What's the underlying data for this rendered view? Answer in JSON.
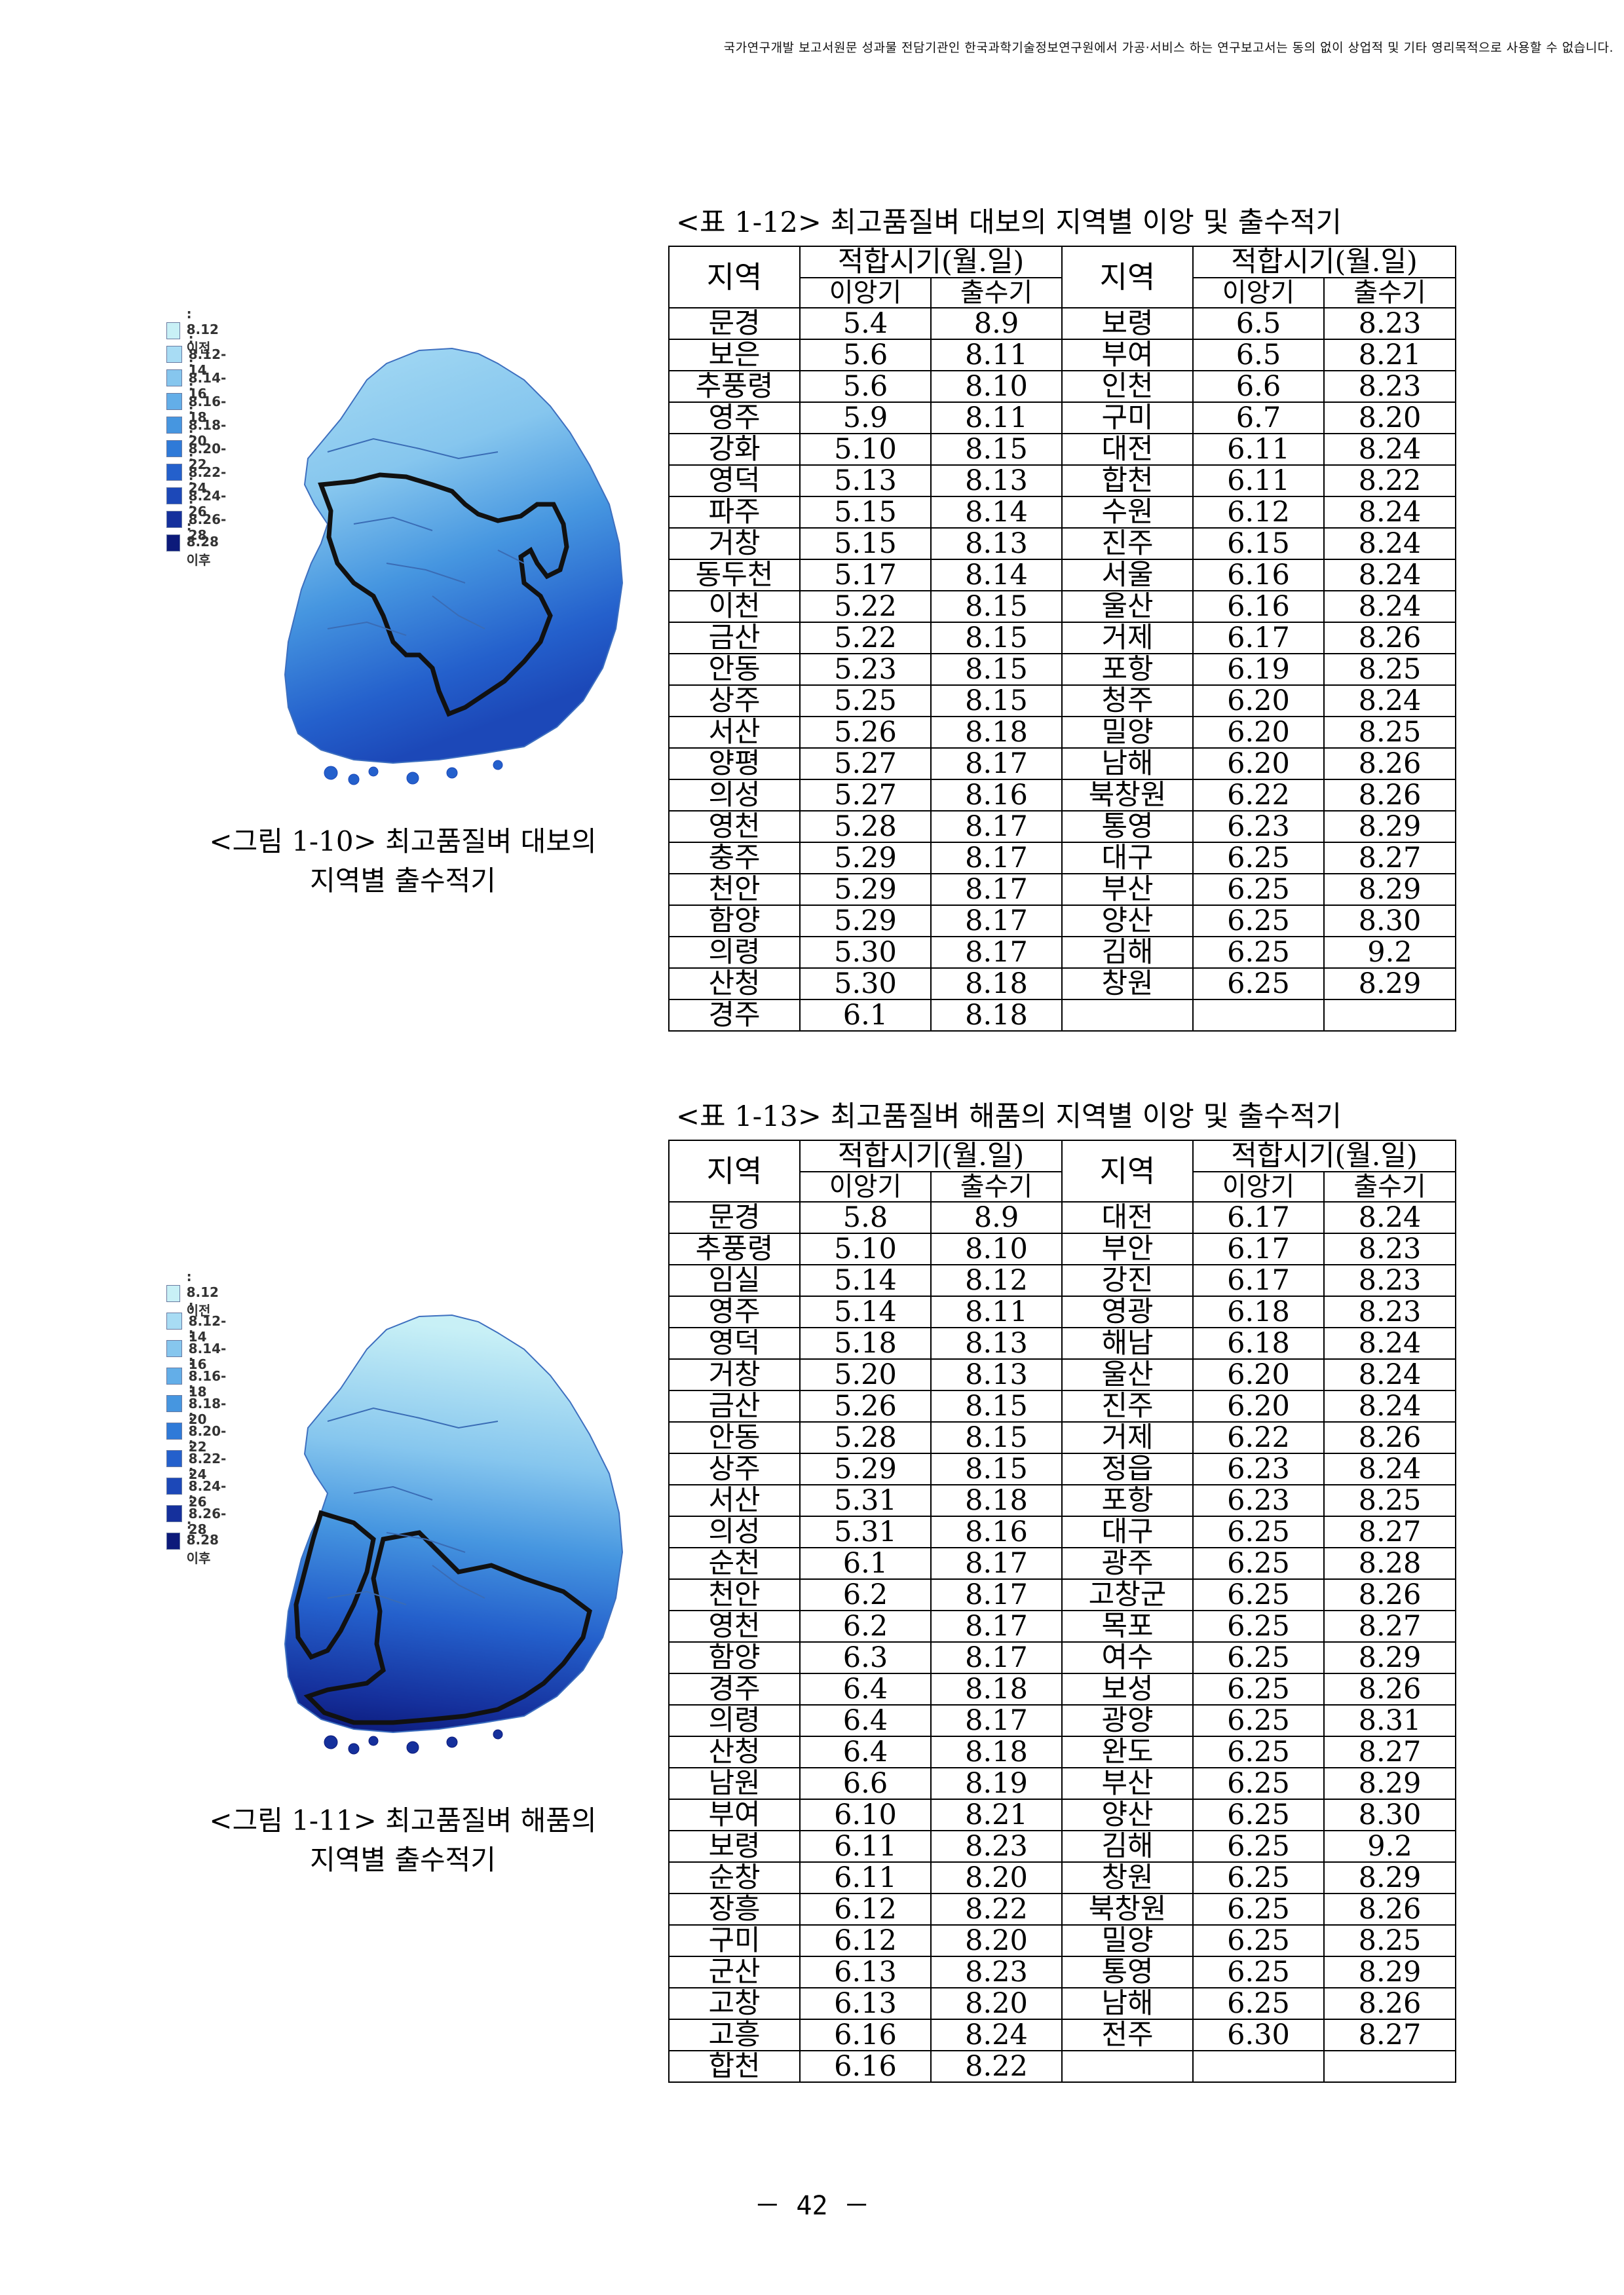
{
  "header_notice": "국가연구개발 보고서원문 성과물 전담기관인 한국과학기술정보연구원에서 가공·서비스 하는 연구보고서는 동의 없이 상업적 및 기타 영리목적으로 사용할 수 없습니다.",
  "figure1": {
    "caption_line1": "<그림 1-10> 최고품질벼 대보의",
    "caption_line2": "지역별 출수적기",
    "legend": [
      {
        "label": ": 8.12 이전",
        "color": "#c8f0f6"
      },
      {
        "label": ": 8.12-14",
        "color": "#a8dcf4"
      },
      {
        "label": ": 8.14-16",
        "color": "#86c6ee"
      },
      {
        "label": ": 8.16-18",
        "color": "#63aee8"
      },
      {
        "label": ": 8.18-20",
        "color": "#4696e0"
      },
      {
        "label": ": 8.20-22",
        "color": "#2f7ad8"
      },
      {
        "label": ": 8.22-24",
        "color": "#2460cc"
      },
      {
        "label": ": 8.24-26",
        "color": "#1c48b8"
      },
      {
        "label": ": 8.26-28",
        "color": "#15309c"
      },
      {
        "label": ": 8.28 이후",
        "color": "#0c1a7a"
      }
    ]
  },
  "figure2": {
    "caption_line1": "<그림 1-11> 최고품질벼 해품의",
    "caption_line2": "지역별 출수적기",
    "legend": [
      {
        "label": ": 8.12 이전",
        "color": "#c8f0f6"
      },
      {
        "label": ": 8.12-14",
        "color": "#a8dcf4"
      },
      {
        "label": ": 8.14-16",
        "color": "#86c6ee"
      },
      {
        "label": ": 8.16-18",
        "color": "#63aee8"
      },
      {
        "label": ": 8.18-20",
        "color": "#4696e0"
      },
      {
        "label": ": 8.20-22",
        "color": "#2f7ad8"
      },
      {
        "label": ": 8.22-24",
        "color": "#2460cc"
      },
      {
        "label": ": 8.24-26",
        "color": "#1c48b8"
      },
      {
        "label": ": 8.26-28",
        "color": "#15309c"
      },
      {
        "label": ": 8.28 이후",
        "color": "#0c1a7a"
      }
    ]
  },
  "table1": {
    "title": "<표 1-12> 최고품질벼 대보의 지역별 이앙 및 출수적기",
    "col_region": "지역",
    "col_period": "적합시기(월.일)",
    "col_transplant": "이앙기",
    "col_heading": "출수기",
    "rows": [
      [
        "문경",
        "5.4",
        "8.9",
        "보령",
        "6.5",
        "8.23"
      ],
      [
        "보은",
        "5.6",
        "8.11",
        "부여",
        "6.5",
        "8.21"
      ],
      [
        "추풍령",
        "5.6",
        "8.10",
        "인천",
        "6.6",
        "8.23"
      ],
      [
        "영주",
        "5.9",
        "8.11",
        "구미",
        "6.7",
        "8.20"
      ],
      [
        "강화",
        "5.10",
        "8.15",
        "대전",
        "6.11",
        "8.24"
      ],
      [
        "영덕",
        "5.13",
        "8.13",
        "합천",
        "6.11",
        "8.22"
      ],
      [
        "파주",
        "5.15",
        "8.14",
        "수원",
        "6.12",
        "8.24"
      ],
      [
        "거창",
        "5.15",
        "8.13",
        "진주",
        "6.15",
        "8.24"
      ],
      [
        "동두천",
        "5.17",
        "8.14",
        "서울",
        "6.16",
        "8.24"
      ],
      [
        "이천",
        "5.22",
        "8.15",
        "울산",
        "6.16",
        "8.24"
      ],
      [
        "금산",
        "5.22",
        "8.15",
        "거제",
        "6.17",
        "8.26"
      ],
      [
        "안동",
        "5.23",
        "8.15",
        "포항",
        "6.19",
        "8.25"
      ],
      [
        "상주",
        "5.25",
        "8.15",
        "청주",
        "6.20",
        "8.24"
      ],
      [
        "서산",
        "5.26",
        "8.18",
        "밀양",
        "6.20",
        "8.25"
      ],
      [
        "양평",
        "5.27",
        "8.17",
        "남해",
        "6.20",
        "8.26"
      ],
      [
        "의성",
        "5.27",
        "8.16",
        "북창원",
        "6.22",
        "8.26"
      ],
      [
        "영천",
        "5.28",
        "8.17",
        "통영",
        "6.23",
        "8.29"
      ],
      [
        "충주",
        "5.29",
        "8.17",
        "대구",
        "6.25",
        "8.27"
      ],
      [
        "천안",
        "5.29",
        "8.17",
        "부산",
        "6.25",
        "8.29"
      ],
      [
        "함양",
        "5.29",
        "8.17",
        "양산",
        "6.25",
        "8.30"
      ],
      [
        "의령",
        "5.30",
        "8.17",
        "김해",
        "6.25",
        "9.2"
      ],
      [
        "산청",
        "5.30",
        "8.18",
        "창원",
        "6.25",
        "8.29"
      ],
      [
        "경주",
        "6.1",
        "8.18",
        "",
        "",
        ""
      ]
    ]
  },
  "table2": {
    "title": "<표 1-13> 최고품질벼 해품의 지역별 이앙 및 출수적기",
    "col_region": "지역",
    "col_period": "적합시기(월.일)",
    "col_transplant": "이앙기",
    "col_heading": "출수기",
    "rows": [
      [
        "문경",
        "5.8",
        "8.9",
        "대전",
        "6.17",
        "8.24"
      ],
      [
        "추풍령",
        "5.10",
        "8.10",
        "부안",
        "6.17",
        "8.23"
      ],
      [
        "임실",
        "5.14",
        "8.12",
        "강진",
        "6.17",
        "8.23"
      ],
      [
        "영주",
        "5.14",
        "8.11",
        "영광",
        "6.18",
        "8.23"
      ],
      [
        "영덕",
        "5.18",
        "8.13",
        "해남",
        "6.18",
        "8.24"
      ],
      [
        "거창",
        "5.20",
        "8.13",
        "울산",
        "6.20",
        "8.24"
      ],
      [
        "금산",
        "5.26",
        "8.15",
        "진주",
        "6.20",
        "8.24"
      ],
      [
        "안동",
        "5.28",
        "8.15",
        "거제",
        "6.22",
        "8.26"
      ],
      [
        "상주",
        "5.29",
        "8.15",
        "정읍",
        "6.23",
        "8.24"
      ],
      [
        "서산",
        "5.31",
        "8.18",
        "포항",
        "6.23",
        "8.25"
      ],
      [
        "의성",
        "5.31",
        "8.16",
        "대구",
        "6.25",
        "8.27"
      ],
      [
        "순천",
        "6.1",
        "8.17",
        "광주",
        "6.25",
        "8.28"
      ],
      [
        "천안",
        "6.2",
        "8.17",
        "고창군",
        "6.25",
        "8.26"
      ],
      [
        "영천",
        "6.2",
        "8.17",
        "목포",
        "6.25",
        "8.27"
      ],
      [
        "함양",
        "6.3",
        "8.17",
        "여수",
        "6.25",
        "8.29"
      ],
      [
        "경주",
        "6.4",
        "8.18",
        "보성",
        "6.25",
        "8.26"
      ],
      [
        "의령",
        "6.4",
        "8.17",
        "광양",
        "6.25",
        "8.31"
      ],
      [
        "산청",
        "6.4",
        "8.18",
        "완도",
        "6.25",
        "8.27"
      ],
      [
        "남원",
        "6.6",
        "8.19",
        "부산",
        "6.25",
        "8.29"
      ],
      [
        "부여",
        "6.10",
        "8.21",
        "양산",
        "6.25",
        "8.30"
      ],
      [
        "보령",
        "6.11",
        "8.23",
        "김해",
        "6.25",
        "9.2"
      ],
      [
        "순창",
        "6.11",
        "8.20",
        "창원",
        "6.25",
        "8.29"
      ],
      [
        "장흥",
        "6.12",
        "8.22",
        "북창원",
        "6.25",
        "8.26"
      ],
      [
        "구미",
        "6.12",
        "8.20",
        "밀양",
        "6.25",
        "8.25"
      ],
      [
        "군산",
        "6.13",
        "8.23",
        "통영",
        "6.25",
        "8.29"
      ],
      [
        "고창",
        "6.13",
        "8.20",
        "남해",
        "6.25",
        "8.26"
      ],
      [
        "고흥",
        "6.16",
        "8.24",
        "전주",
        "6.30",
        "8.27"
      ],
      [
        "합천",
        "6.16",
        "8.22",
        "",
        "",
        ""
      ]
    ]
  },
  "page_number": "－ 42 －"
}
